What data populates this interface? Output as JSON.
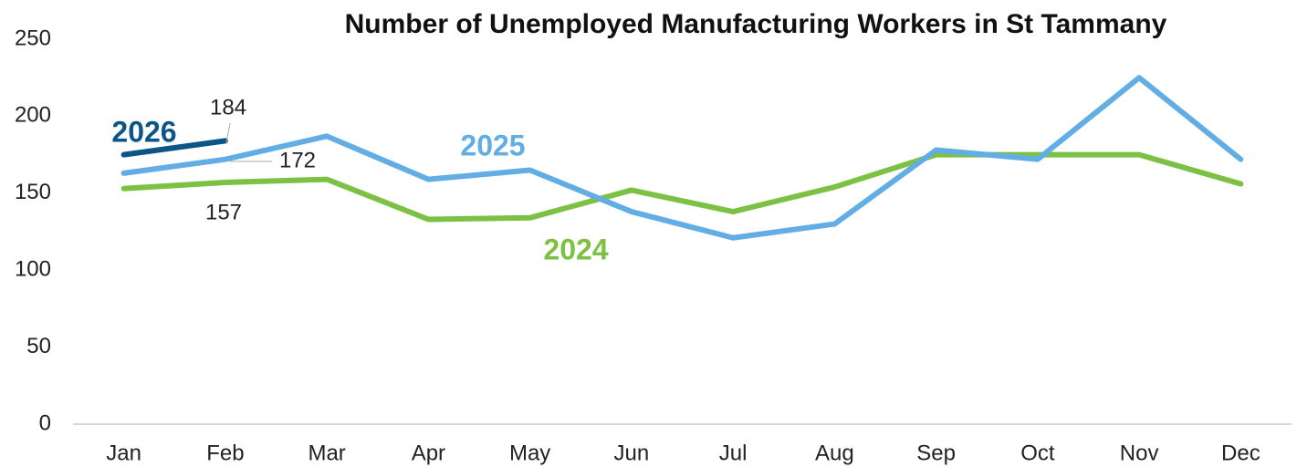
{
  "chart_data": {
    "type": "line",
    "title": "Number of Unemployed Manufacturing Workers in St Tammany",
    "categories": [
      "Jan",
      "Feb",
      "Mar",
      "Apr",
      "May",
      "Jun",
      "Jul",
      "Aug",
      "Sep",
      "Oct",
      "Nov",
      "Dec"
    ],
    "series": [
      {
        "name": "2026",
        "color": "#0b5587",
        "values": [
          175,
          184,
          null,
          null,
          null,
          null,
          null,
          null,
          null,
          null,
          null,
          null
        ]
      },
      {
        "name": "2025",
        "color": "#62aee4",
        "values": [
          163,
          172,
          187,
          159,
          165,
          138,
          121,
          130,
          178,
          172,
          225,
          172
        ]
      },
      {
        "name": "2024",
        "color": "#7cc144",
        "values": [
          153,
          157,
          159,
          133,
          134,
          152,
          138,
          154,
          175,
          175,
          175,
          156
        ]
      }
    ],
    "ylim": [
      0,
      250
    ],
    "yticks": [
      0,
      50,
      100,
      150,
      200,
      250
    ],
    "grid": false
  }
}
